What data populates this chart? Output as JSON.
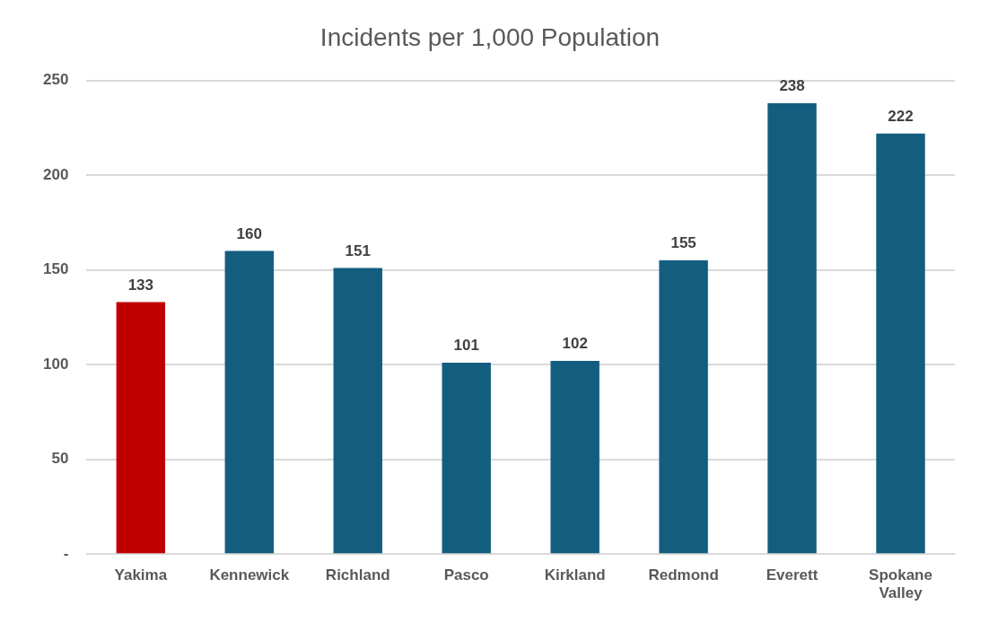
{
  "chart_data": {
    "type": "bar",
    "title": "Incidents per 1,000 Population",
    "categories": [
      "Yakima",
      "Kennewick",
      "Richland",
      "Pasco",
      "Kirkland",
      "Redmond",
      "Everett",
      "Spokane Valley"
    ],
    "values": [
      133,
      160,
      151,
      101,
      102,
      155,
      238,
      222
    ],
    "colors": [
      "#c00000",
      "#135e7f",
      "#135e7f",
      "#135e7f",
      "#135e7f",
      "#135e7f",
      "#135e7f",
      "#135e7f"
    ],
    "ylim": [
      0,
      250
    ],
    "yticks": [
      {
        "value": 0,
        "label": "-"
      },
      50,
      100,
      150,
      200,
      250
    ],
    "grid": "y",
    "legend": false,
    "data_labels": true
  }
}
